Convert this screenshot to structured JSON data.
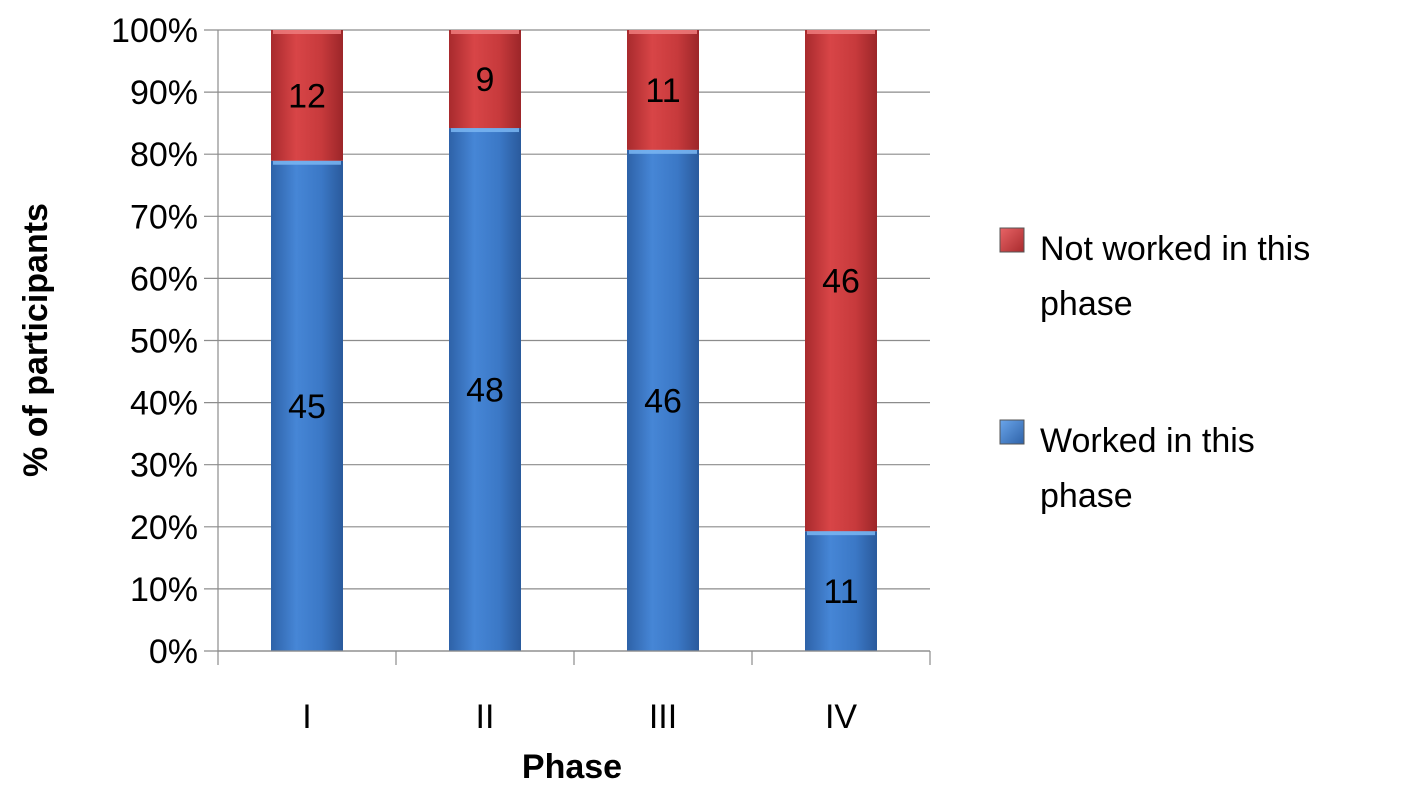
{
  "chart_data": {
    "type": "bar",
    "stacked": true,
    "percent_stacked": true,
    "categories": [
      "I",
      "II",
      "III",
      "IV"
    ],
    "series": [
      {
        "name": "Worked in this phase",
        "values": [
          45,
          48,
          46,
          11
        ],
        "color": "#3a77c2"
      },
      {
        "name": "Not worked in this phase",
        "values": [
          12,
          9,
          11,
          46
        ],
        "color": "#c0373a"
      }
    ],
    "xlabel": "Phase",
    "ylabel": "% of participants",
    "ylim": [
      0,
      100
    ],
    "yticks": [
      "0%",
      "10%",
      "20%",
      "30%",
      "40%",
      "50%",
      "60%",
      "70%",
      "80%",
      "90%",
      "100%"
    ],
    "grid": true,
    "legend_position": "right",
    "legend_entries": [
      {
        "lines": [
          "Not worked in this",
          "phase"
        ],
        "color": "#c0373a"
      },
      {
        "lines": [
          "Worked in this",
          "phase"
        ],
        "color": "#3a77c2"
      }
    ]
  }
}
